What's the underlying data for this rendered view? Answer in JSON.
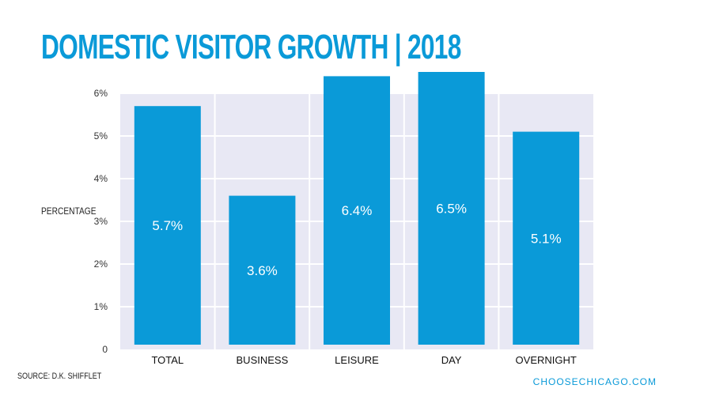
{
  "header": {
    "title": "DOMESTIC VISITOR GROWTH | 2018"
  },
  "footer": {
    "source": "SOURCE: D.K. SHIFFLET",
    "website": "CHOOSECHICAGO.COM"
  },
  "colors": {
    "bar": "#0a9ad8",
    "plot_bg": "#e8e8f4",
    "grid": "#ffffff",
    "accent": "#0a9ad8"
  },
  "chart_data": {
    "type": "bar",
    "title": "DOMESTIC VISITOR GROWTH | 2018",
    "xlabel": "",
    "ylabel": "PERCENTAGE",
    "categories": [
      "TOTAL",
      "BUSINESS",
      "LEISURE",
      "DAY",
      "OVERNIGHT"
    ],
    "values": [
      5.7,
      3.6,
      6.4,
      6.5,
      5.1
    ],
    "data_labels": [
      "5.7%",
      "3.6%",
      "6.4%",
      "6.5%",
      "5.1%"
    ],
    "y_ticks": [
      0,
      1,
      2,
      3,
      4,
      5,
      6
    ],
    "y_tick_labels": [
      "0",
      "1%",
      "2%",
      "3%",
      "4%",
      "5%",
      "6%"
    ],
    "ylim": [
      0,
      6
    ],
    "grid": true,
    "legend": "none"
  }
}
